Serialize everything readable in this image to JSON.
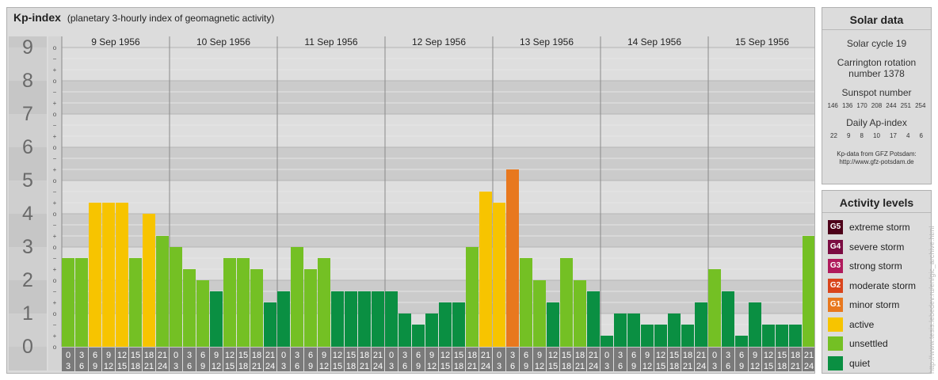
{
  "header": {
    "title": "Kp-index",
    "subtitle": "(planetary 3-hourly index of geomagnetic activity)"
  },
  "chart_data": {
    "type": "bar",
    "title": "Kp-index",
    "subtitle": "(planetary 3-hourly index of geomagnetic activity)",
    "ylim": [
      0,
      9
    ],
    "y_ticks": [
      "0",
      "1",
      "2",
      "3",
      "4",
      "5",
      "6",
      "7",
      "8",
      "9"
    ],
    "sub_ticks": [
      "o",
      "+",
      "−"
    ],
    "days": [
      "9 Sep 1956",
      "10 Sep 1956",
      "11 Sep 1956",
      "12 Sep 1956",
      "13 Sep 1956",
      "14 Sep 1956",
      "15 Sep 1956"
    ],
    "hour_start": [
      "0",
      "3",
      "6",
      "9",
      "12",
      "15",
      "18",
      "21"
    ],
    "hour_end": [
      "3",
      "6",
      "9",
      "12",
      "15",
      "18",
      "21",
      "24"
    ],
    "values": [
      [
        2.667,
        2.667,
        4.333,
        4.333,
        4.333,
        2.667,
        4.0,
        3.333
      ],
      [
        3.0,
        2.333,
        2.0,
        1.667,
        2.667,
        2.667,
        2.333,
        1.333
      ],
      [
        1.667,
        3.0,
        2.333,
        2.667,
        1.667,
        1.667,
        1.667,
        1.667
      ],
      [
        1.667,
        1.0,
        0.667,
        1.0,
        1.333,
        1.333,
        3.0,
        4.667
      ],
      [
        4.333,
        5.333,
        2.667,
        2.0,
        1.333,
        2.667,
        2.0,
        1.667
      ],
      [
        0.333,
        1.0,
        1.0,
        0.667,
        0.667,
        1.0,
        0.667,
        1.333
      ],
      [
        2.333,
        1.667,
        0.333,
        1.333,
        0.667,
        0.667,
        0.667,
        3.333
      ]
    ],
    "grid": true,
    "legend_position": "right"
  },
  "solar": {
    "title": "Solar data",
    "cycle": "Solar cycle 19",
    "carrington_line1": "Carrington rotation",
    "carrington_line2": "number 1378",
    "sunspot_label": "Sunspot number",
    "sunspot_values": [
      "146",
      "136",
      "170",
      "208",
      "244",
      "251",
      "254"
    ],
    "ap_label": "Daily Ap-index",
    "ap_values": [
      "22",
      "9",
      "8",
      "10",
      "17",
      "4",
      "6"
    ],
    "credit_line1": "Kp-data from GFZ Potsdam:",
    "credit_line2": "http://www.gfz-potsdam.de"
  },
  "levels": {
    "title": "Activity levels",
    "items": [
      {
        "code": "G5",
        "label": "extreme storm",
        "color": "#4d0019"
      },
      {
        "code": "G4",
        "label": "severe storm",
        "color": "#7b0c42"
      },
      {
        "code": "G3",
        "label": "strong storm",
        "color": "#b01a5c"
      },
      {
        "code": "G2",
        "label": "moderate storm",
        "color": "#d9441c"
      },
      {
        "code": "G1",
        "label": "minor storm",
        "color": "#e8781e"
      },
      {
        "code": "",
        "label": "active",
        "color": "#f7c400"
      },
      {
        "code": "",
        "label": "unsettled",
        "color": "#74c024"
      },
      {
        "code": "",
        "label": "quiet",
        "color": "#0a8f42"
      }
    ]
  },
  "side_credit": "http://www.tesis.lebedev.ru/en/gic_archive.html"
}
